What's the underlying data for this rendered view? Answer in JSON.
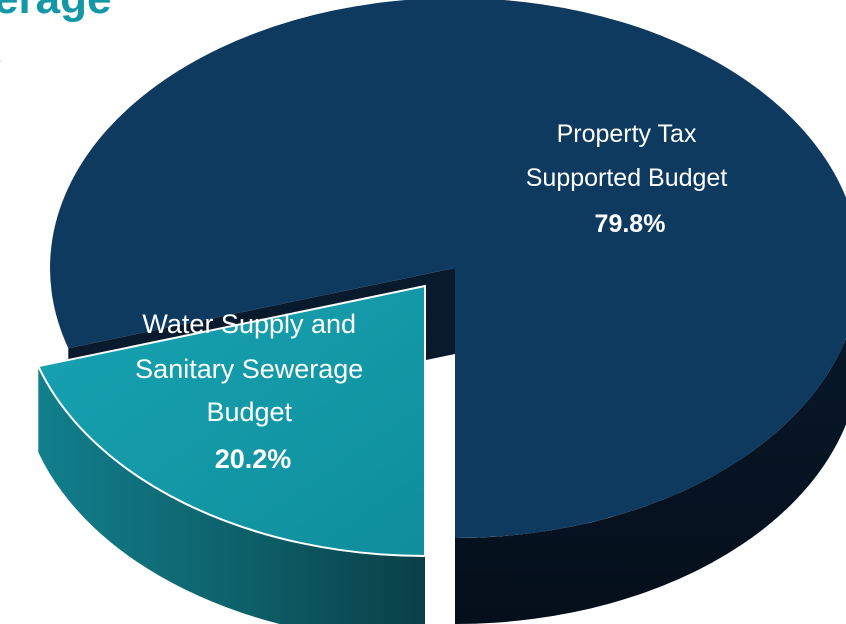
{
  "title": {
    "line1": "erage",
    "line2": "t"
  },
  "colors": {
    "title": "#1497a6",
    "property_tax": "#0e3a60",
    "water_sewer": "#1296a5",
    "background": "#ffffff"
  },
  "chart_data": {
    "type": "pie",
    "style": "3d-exploded",
    "title": "",
    "legend": "none",
    "slices": [
      {
        "label_lines": [
          "Property Tax",
          "Supported Budget"
        ],
        "percent_label": "79.8%",
        "value": 79.8,
        "color": "#0e3a60"
      },
      {
        "label_lines": [
          "Water Supply and",
          "Sanitary Sewerage",
          "Budget"
        ],
        "percent_label": "20.2%",
        "value": 20.2,
        "color": "#1296a5"
      }
    ]
  }
}
